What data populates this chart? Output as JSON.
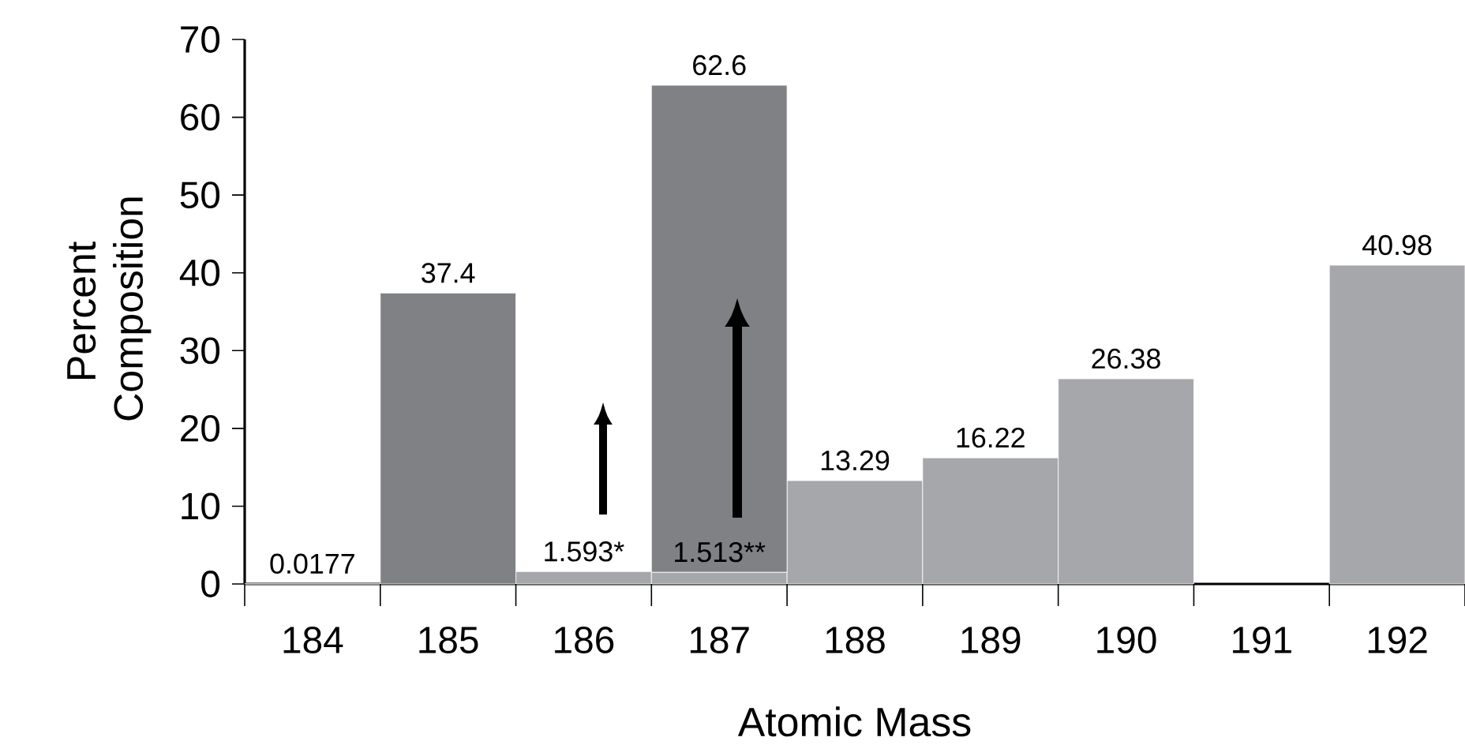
{
  "chart_data": {
    "type": "bar",
    "stacked": true,
    "xlabel": "Atomic Mass",
    "ylabel": "Percent Composition",
    "categories": [
      "184",
      "185",
      "186",
      "187",
      "188",
      "189",
      "190",
      "191",
      "192"
    ],
    "series": [
      {
        "color": "#a6a7aa",
        "values": [
          0.0177,
          null,
          1.593,
          1.513,
          13.29,
          16.22,
          26.38,
          null,
          40.98
        ],
        "value_labels": [
          "0.0177",
          null,
          "1.593*",
          "1.513**",
          "13.29",
          "16.22",
          "26.38",
          null,
          "40.98"
        ]
      },
      {
        "color": "#808184",
        "values": [
          null,
          37.4,
          null,
          62.6,
          null,
          null,
          null,
          null,
          null
        ],
        "value_labels": [
          null,
          "37.4",
          null,
          "62.6",
          null,
          null,
          null,
          null,
          null
        ]
      }
    ],
    "ylim": [
      0,
      70
    ],
    "yticks": [
      0,
      10,
      20,
      30,
      40,
      50,
      60,
      70
    ],
    "grid": false
  }
}
